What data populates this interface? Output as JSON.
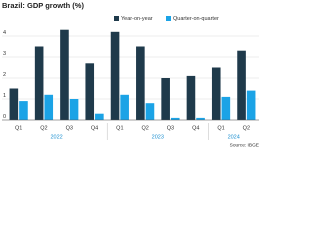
{
  "chart_data": {
    "type": "bar",
    "title": "Brazil: GDP growth (%)",
    "categories": [
      "Q1",
      "Q2",
      "Q3",
      "Q4",
      "Q1",
      "Q2",
      "Q3",
      "Q4",
      "Q1",
      "Q2"
    ],
    "year_labels": [
      "2022",
      "2023",
      "2024"
    ],
    "series": [
      {
        "name": "Year-on-year",
        "color": "#1f3a4b",
        "values": [
          1.5,
          3.5,
          4.3,
          2.7,
          4.2,
          3.5,
          2.0,
          2.1,
          2.5,
          3.3
        ]
      },
      {
        "name": "Quarter-on-quarter",
        "color": "#1ba3e6",
        "values": [
          0.9,
          1.2,
          1.0,
          0.3,
          1.2,
          0.8,
          0.1,
          0.1,
          1.1,
          1.4
        ]
      }
    ],
    "ylim": [
      0,
      5
    ],
    "yticks": [
      0,
      1,
      2,
      3,
      4
    ],
    "grid": true,
    "source": "Source: IBGE"
  }
}
